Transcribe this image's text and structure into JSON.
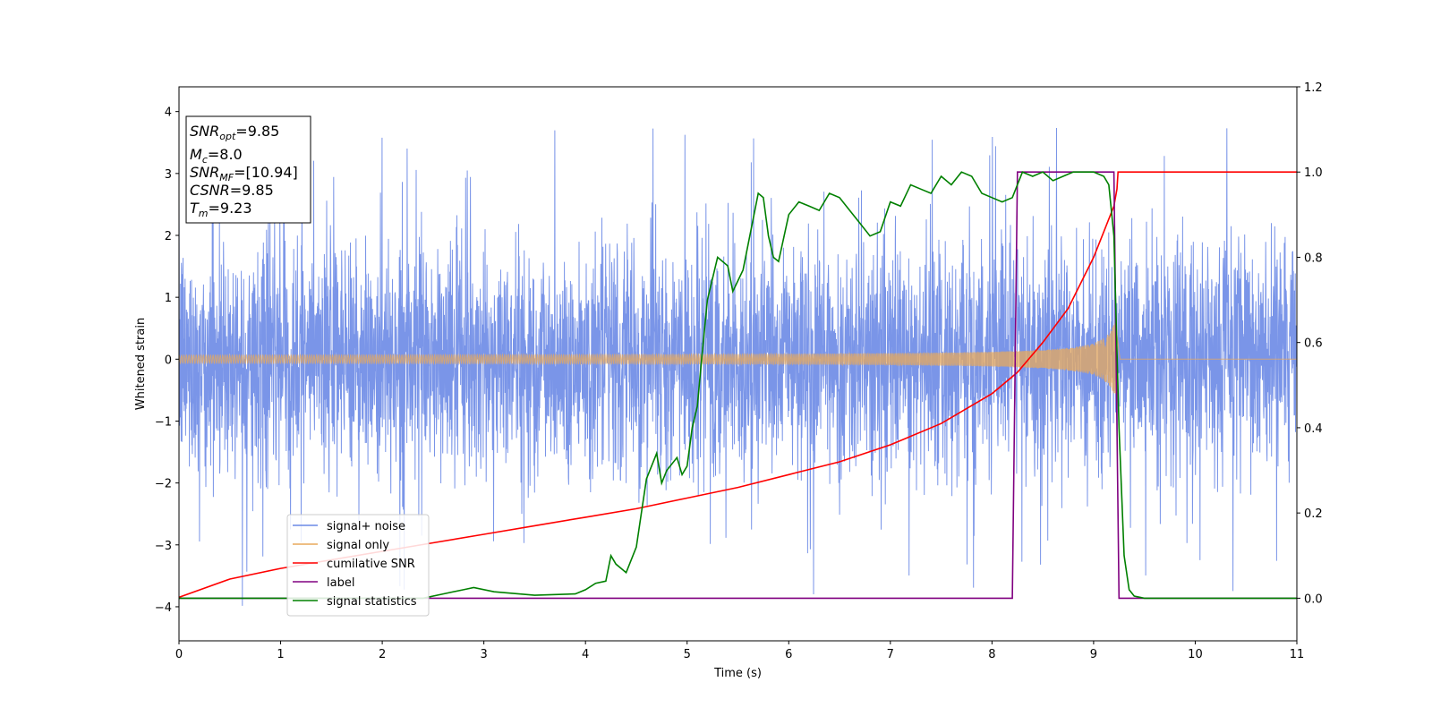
{
  "chart_data": {
    "type": "line",
    "xlabel": "Time (s)",
    "ylabel": "Whitened strain",
    "xlim": [
      0,
      11
    ],
    "ylim_left": [
      -4.55,
      4.4
    ],
    "ylim_right": [
      -0.1,
      1.2
    ],
    "x_ticks": [
      "0",
      "1",
      "2",
      "3",
      "4",
      "5",
      "6",
      "7",
      "8",
      "9",
      "10",
      "11"
    ],
    "y_left_ticks": [
      "−4",
      "−3",
      "−2",
      "−1",
      "0",
      "1",
      "2",
      "3",
      "4"
    ],
    "y_right_ticks": [
      "0.0",
      "0.2",
      "0.4",
      "0.6",
      "0.8",
      "1.0",
      "1.2"
    ],
    "grid": false,
    "legend_position": "lower-left",
    "colors": {
      "noise": "#6b8ae6",
      "signal": "#e8a95c",
      "csnr": "#ff0000",
      "label": "#800080",
      "stats": "#008000"
    },
    "annotation": {
      "snr_opt": {
        "sym": "SNR",
        "sub": "opt",
        "val": "=9.85"
      },
      "mc": {
        "sym": "M",
        "sub": "c",
        "val": "=8.0"
      },
      "snr_mf": {
        "sym": "SNR",
        "sub": "MF",
        "val": "=[10.94]"
      },
      "csnr": {
        "sym": "CSNR",
        "val": "=9.85"
      },
      "tm": {
        "sym": "T",
        "sub": "m",
        "val": "=9.23"
      }
    },
    "series": [
      {
        "name": "signal+ noise",
        "axis": "left",
        "kind": "noise",
        "stdev": 1.0,
        "spike_max": 4.0,
        "spike_min": -4.15,
        "x_range": [
          0,
          11
        ]
      },
      {
        "name": "signal only",
        "axis": "left",
        "kind": "chirp",
        "x_range": [
          0,
          9.23
        ],
        "amplitude_start": 0.05,
        "amplitude_end": 0.75,
        "after_merger": 0.0
      },
      {
        "name": "cumilative SNR",
        "axis": "right",
        "x": [
          0,
          0.5,
          1,
          1.5,
          2,
          2.5,
          3,
          3.5,
          4,
          4.5,
          5,
          5.5,
          6,
          6.5,
          7,
          7.5,
          8,
          8.25,
          8.5,
          8.75,
          9,
          9.1,
          9.2,
          9.23,
          9.24,
          11
        ],
        "y": [
          0.002,
          0.045,
          0.07,
          0.09,
          0.11,
          0.13,
          0.15,
          0.17,
          0.19,
          0.21,
          0.235,
          0.26,
          0.29,
          0.32,
          0.36,
          0.41,
          0.48,
          0.53,
          0.6,
          0.68,
          0.8,
          0.86,
          0.92,
          0.96,
          1.0,
          1.0
        ]
      },
      {
        "name": "label",
        "axis": "right",
        "x": [
          0,
          8.2,
          8.25,
          9.2,
          9.25,
          11
        ],
        "y": [
          0,
          0,
          1,
          1,
          0,
          0
        ]
      },
      {
        "name": "signal statistics",
        "axis": "right",
        "x": [
          0,
          2.4,
          2.6,
          2.8,
          2.9,
          3.1,
          3.5,
          3.9,
          4.0,
          4.1,
          4.2,
          4.25,
          4.3,
          4.4,
          4.5,
          4.55,
          4.6,
          4.7,
          4.75,
          4.8,
          4.9,
          4.95,
          5.0,
          5.05,
          5.1,
          5.15,
          5.2,
          5.3,
          5.4,
          5.45,
          5.55,
          5.7,
          5.75,
          5.8,
          5.85,
          5.9,
          6.0,
          6.1,
          6.2,
          6.3,
          6.4,
          6.5,
          6.6,
          6.7,
          6.8,
          6.9,
          7.0,
          7.1,
          7.2,
          7.3,
          7.4,
          7.5,
          7.6,
          7.7,
          7.8,
          7.9,
          8.0,
          8.1,
          8.2,
          8.3,
          8.4,
          8.5,
          8.6,
          8.7,
          8.8,
          8.9,
          9.0,
          9.1,
          9.15,
          9.2,
          9.25,
          9.3,
          9.35,
          9.4,
          9.5,
          11
        ],
        "y": [
          0.0,
          0.0,
          0.01,
          0.02,
          0.025,
          0.015,
          0.007,
          0.01,
          0.02,
          0.035,
          0.04,
          0.1,
          0.08,
          0.06,
          0.12,
          0.2,
          0.28,
          0.34,
          0.27,
          0.3,
          0.33,
          0.29,
          0.31,
          0.4,
          0.45,
          0.58,
          0.7,
          0.8,
          0.78,
          0.72,
          0.77,
          0.95,
          0.94,
          0.85,
          0.8,
          0.79,
          0.9,
          0.93,
          0.92,
          0.91,
          0.95,
          0.94,
          0.91,
          0.88,
          0.85,
          0.86,
          0.93,
          0.92,
          0.97,
          0.96,
          0.95,
          0.99,
          0.97,
          1.0,
          0.99,
          0.95,
          0.94,
          0.93,
          0.94,
          1.0,
          0.99,
          1.0,
          0.98,
          0.99,
          1.0,
          1.0,
          1.0,
          0.99,
          0.97,
          0.85,
          0.4,
          0.1,
          0.02,
          0.005,
          0.0,
          0.0
        ]
      }
    ]
  }
}
